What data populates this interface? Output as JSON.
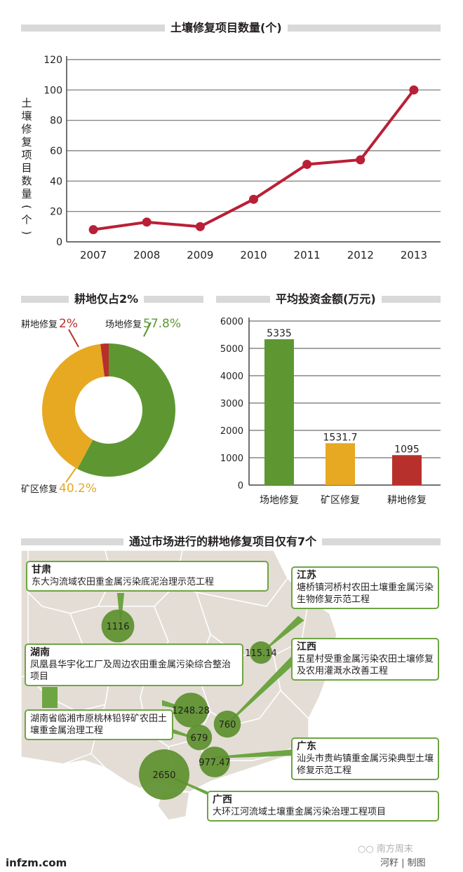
{
  "chart_data": [
    {
      "type": "line",
      "title": "土壤修复项目数量(个)",
      "ylabel": "土壤修复项目数量(个)",
      "categories": [
        "2007",
        "2008",
        "2009",
        "2010",
        "2011",
        "2012",
        "2013"
      ],
      "values": [
        8,
        13,
        10,
        28,
        51,
        54,
        100
      ],
      "ylim": [
        0,
        120
      ],
      "yticks": [
        "0",
        "20",
        "40",
        "60",
        "80",
        "100",
        "120"
      ],
      "grid": true,
      "color": "#b91f36"
    },
    {
      "type": "pie",
      "title": "耕地仅占2%",
      "slices": [
        {
          "label": "场地修复",
          "value": 57.8,
          "pct": "57.8%",
          "color": "#5e9732"
        },
        {
          "label": "矿区修复",
          "value": 40.2,
          "pct": "40.2%",
          "color": "#e6a921"
        },
        {
          "label": "耕地修复",
          "value": 2,
          "pct": "2%",
          "color": "#b8302b"
        }
      ]
    },
    {
      "type": "bar",
      "title": "平均投资金额(万元)",
      "categories": [
        "场地修复",
        "矿区修复",
        "耕地修复"
      ],
      "values": [
        5335,
        1531.7,
        1095
      ],
      "value_labels": [
        "5335",
        "1531.7",
        "1095"
      ],
      "colors": [
        "#5e9732",
        "#e6a921",
        "#b8302b"
      ],
      "ylim": [
        0,
        6000
      ],
      "yticks": [
        "0",
        "1000",
        "2000",
        "3000",
        "4000",
        "5000",
        "6000"
      ],
      "grid": true
    }
  ],
  "map": {
    "title": "通过市场进行的耕地修复项目仅有7个",
    "bubbles": [
      {
        "value": 1116,
        "label": "1116"
      },
      {
        "value": 115.14,
        "label": "115.14"
      },
      {
        "value": 1248.28,
        "label": "1248.28"
      },
      {
        "value": 760,
        "label": "760"
      },
      {
        "value": 679,
        "label": "679"
      },
      {
        "value": 977.47,
        "label": "977.47"
      },
      {
        "value": 2650,
        "label": "2650"
      }
    ],
    "callouts": {
      "gansu": {
        "title": "甘肃",
        "text": "东大沟流域农田重金属污染底泥治理示范工程"
      },
      "jiangsu": {
        "title": "江苏",
        "text": "塘桥镇河桥村农田土壤重金属污染生物修复示范工程"
      },
      "hunan": {
        "title": "湖南",
        "text": "凤凰县华宇化工厂及周边农田重金属污染综合整治项目"
      },
      "hunan2": {
        "text": "湖南省临湘市原桃林铅锌矿农田土壤重金属治理工程"
      },
      "jiangxi": {
        "title": "江西",
        "text": "五星村受重金属污染农田土壤修复及农用灌溉水改善工程"
      },
      "guangdong": {
        "title": "广东",
        "text": "汕头市贵屿镇重金属污染典型土壤修复示范工程"
      },
      "guangxi": {
        "title": "广西",
        "text": "大环江河流域土壤重金属污染治理工程项目"
      }
    }
  },
  "footer": {
    "source": "infzm.com",
    "credit": "河籽 | 制图",
    "watermark": "南方周末"
  }
}
